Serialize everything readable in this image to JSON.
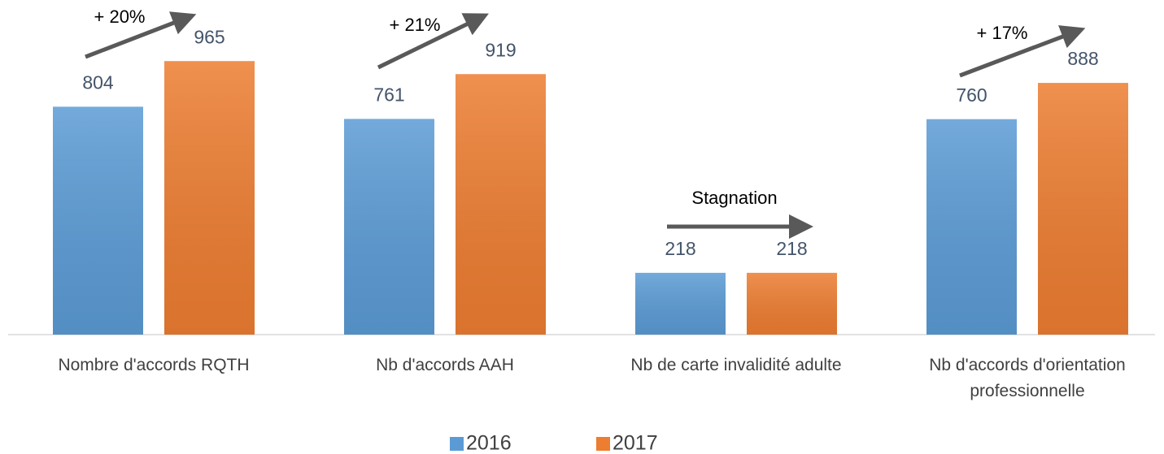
{
  "chart_data": {
    "type": "bar",
    "categories": [
      "Nombre d'accords RQTH",
      "Nb d'accords AAH",
      "Nb de carte invalidité adulte",
      "Nb d'accords d'orientation professionnelle"
    ],
    "series": [
      {
        "name": "2016",
        "color": "#5b9bd5",
        "values": [
          804,
          761,
          218,
          760
        ]
      },
      {
        "name": "2017",
        "color": "#ed7d31",
        "values": [
          965,
          919,
          218,
          888
        ]
      }
    ],
    "annotations": [
      "+ 20%",
      "+ 21%",
      "Stagnation",
      "+ 17%"
    ],
    "legend": "bottom"
  }
}
